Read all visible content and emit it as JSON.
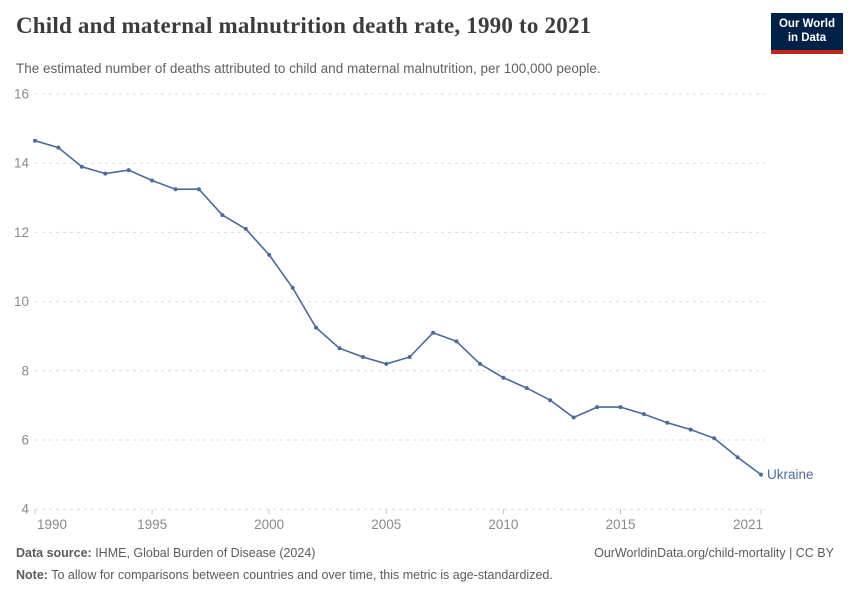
{
  "header": {
    "title": "Child and maternal malnutrition death rate, 1990 to 2021",
    "subtitle": "The estimated number of deaths attributed to child and maternal malnutrition, per 100,000 people.",
    "logo": {
      "line1": "Our World",
      "line2": "in Data"
    }
  },
  "chart_data": {
    "type": "line",
    "title": "Child and maternal malnutrition death rate, 1990 to 2021",
    "xlabel": "",
    "ylabel": "",
    "x": [
      1990,
      1991,
      1992,
      1993,
      1994,
      1995,
      1996,
      1997,
      1998,
      1999,
      2000,
      2001,
      2002,
      2003,
      2004,
      2005,
      2006,
      2007,
      2008,
      2009,
      2010,
      2011,
      2012,
      2013,
      2014,
      2015,
      2016,
      2017,
      2018,
      2019,
      2020,
      2021
    ],
    "series": [
      {
        "name": "Ukraine",
        "color": "#4C6A9C",
        "values": [
          14.65,
          14.45,
          13.9,
          13.7,
          13.8,
          13.5,
          13.25,
          13.25,
          12.5,
          12.1,
          11.35,
          10.4,
          9.25,
          8.65,
          8.4,
          8.2,
          8.4,
          9.1,
          8.85,
          8.2,
          7.8,
          7.5,
          7.15,
          6.65,
          6.95,
          6.95,
          6.75,
          6.5,
          6.3,
          6.05,
          5.5,
          5.0
        ]
      }
    ],
    "ylim": [
      4,
      16
    ],
    "yticks": [
      4,
      6,
      8,
      10,
      12,
      14,
      16
    ],
    "xticks": [
      1990,
      1995,
      2000,
      2005,
      2010,
      2015,
      2021
    ],
    "grid": "horizontal-dashed",
    "legend": "line-end-label",
    "end_label": "Ukraine"
  },
  "footer": {
    "datasource_label": "Data source:",
    "datasource_value": " IHME, Global Burden of Disease (2024)",
    "link": "OurWorldinData.org/child-mortality | CC BY",
    "note_label": "Note:",
    "note_value": " To allow for comparisons between countries and over time, this metric is age-standardized."
  },
  "colors": {
    "line": "#4C6A9C",
    "grid": "#DCDCDC",
    "axis_text": "#8A8A8A",
    "tick": "#C8C8C8",
    "title_text": "#3C3C3C",
    "subtitle_text": "#616161",
    "footer_text": "#5B5B5B",
    "logo_bg": "#002147",
    "logo_stripe": "#C0281E",
    "background": "#FFFFFF"
  }
}
